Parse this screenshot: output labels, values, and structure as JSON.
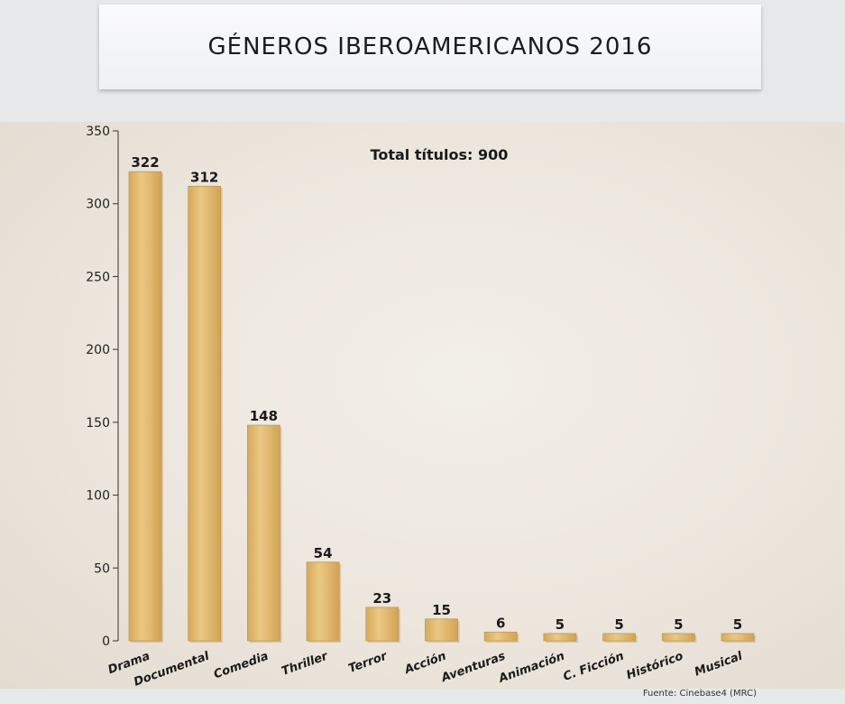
{
  "header": {
    "title": "GÉNEROS IBEROAMERICANOS 2016"
  },
  "source": "Fuente: Cinebase4 (MRC)",
  "colors": {
    "bar": "#e2b86a",
    "bar_dark": "#c99a48",
    "axis": "#333333"
  },
  "chart_data": {
    "type": "bar",
    "title": "GÉNEROS IBEROAMERICANOS 2016",
    "annotation": "Total títulos: 900",
    "categories": [
      "Drama",
      "Documental",
      "Comedia",
      "Thriller",
      "Terror",
      "Acción",
      "Aventuras",
      "Animación",
      "C. Ficción",
      "Histórico",
      "Musical"
    ],
    "values": [
      322,
      312,
      148,
      54,
      23,
      15,
      6,
      5,
      5,
      5,
      5
    ],
    "ylim": [
      0,
      350
    ],
    "yticks": [
      0,
      50,
      100,
      150,
      200,
      250,
      300,
      350
    ],
    "xlabel": "",
    "ylabel": "",
    "grid": false,
    "data_labels": true
  }
}
